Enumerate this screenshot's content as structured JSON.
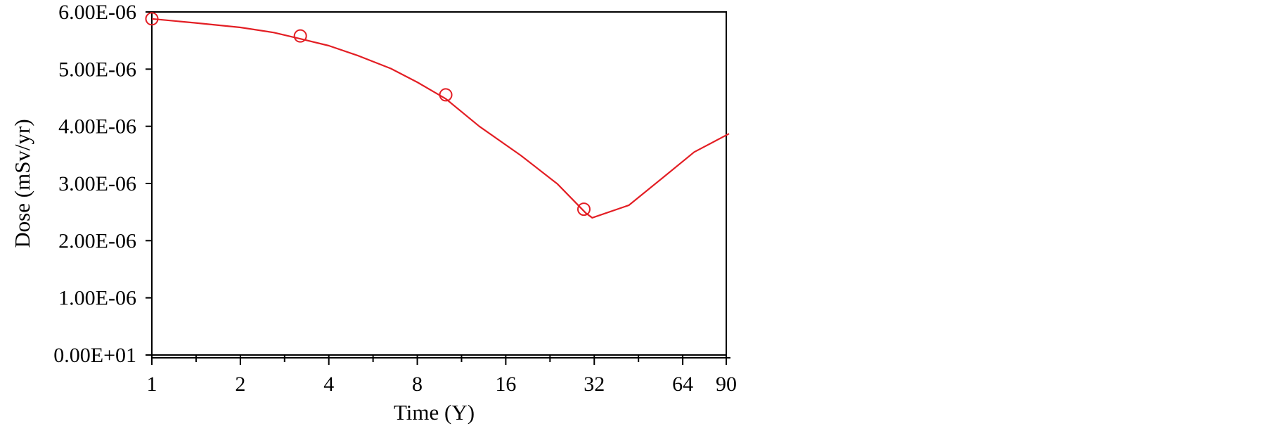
{
  "chart_data": {
    "type": "line",
    "title": "",
    "xlabel": "Time (Y)",
    "ylabel": "Dose (mSv/yr)",
    "x_scale": "log2",
    "xlim": [
      1,
      90
    ],
    "ylim": [
      0,
      6e-06
    ],
    "x_ticks": [
      1,
      2,
      4,
      8,
      16,
      32,
      64,
      90
    ],
    "x_tick_labels": [
      "1",
      "2",
      "4",
      "8",
      "16",
      "32",
      "64",
      "90"
    ],
    "y_ticks": [
      0,
      1e-06,
      2e-06,
      3e-06,
      4e-06,
      5e-06,
      6e-06
    ],
    "y_tick_labels": [
      "0.00E+01",
      "1.00E-06",
      "2.00E-06",
      "3.00E-06",
      "4.00E-06",
      "5.00E-06",
      "6.00E-06"
    ],
    "grid": false,
    "legend": false,
    "series": [
      {
        "color": "#e31e24",
        "marker": "open-circle",
        "points": [
          [
            1,
            5.88e-06
          ],
          [
            1.4,
            5.81e-06
          ],
          [
            2,
            5.73e-06
          ],
          [
            2.6,
            5.64e-06
          ],
          [
            3.2,
            5.53e-06
          ],
          [
            4,
            5.41e-06
          ],
          [
            5,
            5.24e-06
          ],
          [
            6.5,
            5.01e-06
          ],
          [
            8,
            4.77e-06
          ],
          [
            10,
            4.48e-06
          ],
          [
            13,
            4e-06
          ],
          [
            18,
            3.49e-06
          ],
          [
            24,
            2.99e-06
          ],
          [
            30,
            2.48e-06
          ],
          [
            31.5,
            2.4e-06
          ],
          [
            42,
            2.62e-06
          ],
          [
            55,
            3.11e-06
          ],
          [
            70,
            3.55e-06
          ],
          [
            92,
            3.87e-06
          ]
        ],
        "markers": [
          [
            1,
            5.88e-06
          ],
          [
            3.2,
            5.58e-06
          ],
          [
            10,
            4.55e-06
          ],
          [
            29.5,
            2.55e-06
          ]
        ]
      }
    ]
  }
}
